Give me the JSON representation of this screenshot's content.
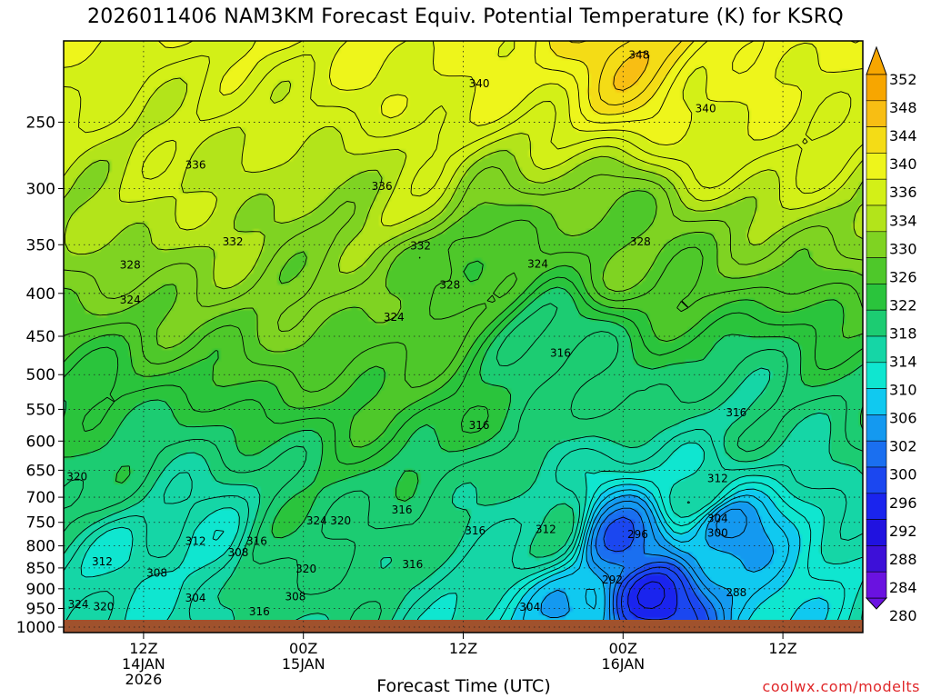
{
  "page_title": "2026011406 NAM3KM Forecast Equiv. Potential Temperature (K) for KSRQ",
  "credit": "coolwx.com/modelts",
  "chart_data": {
    "type": "heatmap",
    "title": "2026011406 NAM3KM Forecast Equiv. Potential Temperature (K) for KSRQ",
    "xlabel": "Forecast Time (UTC)",
    "ylabel": "",
    "y_scale": "log-pressure",
    "y_ticks": [
      250,
      300,
      350,
      400,
      450,
      500,
      550,
      600,
      650,
      700,
      750,
      800,
      850,
      900,
      950,
      1000
    ],
    "x_ticks": [
      {
        "hour": 6,
        "lines": [
          "12Z",
          "14JAN",
          "2026"
        ]
      },
      {
        "hour": 18,
        "lines": [
          "00Z",
          "15JAN"
        ]
      },
      {
        "hour": 30,
        "lines": [
          "12Z"
        ]
      },
      {
        "hour": 42,
        "lines": [
          "00Z",
          "16JAN"
        ]
      },
      {
        "hour": 54,
        "lines": [
          "12Z"
        ]
      }
    ],
    "x_range_hours": [
      0,
      60
    ],
    "y_range_hpa": [
      200,
      1015
    ],
    "grid": true,
    "colorbar_levels": [
      352,
      348,
      344,
      340,
      336,
      334,
      330,
      326,
      322,
      318,
      314,
      310,
      306,
      302,
      300,
      296,
      292,
      288,
      284,
      280
    ],
    "colorbar_colors": [
      "#f7a600",
      "#f8be13",
      "#f4dc16",
      "#eef51b",
      "#d3f017",
      "#b3e41a",
      "#7fd322",
      "#4ec82a",
      "#2ac43c",
      "#1ccc72",
      "#15d6a6",
      "#0fe6d0",
      "#10c9f0",
      "#1499f0",
      "#1a6ff0",
      "#1b47f0",
      "#1a24ee",
      "#2012e0",
      "#3d10d8",
      "#6a12e0"
    ],
    "anchor_points": [
      {
        "hour": 5,
        "hpa": 840,
        "theta_e": 312
      },
      {
        "hour": 2,
        "hpa": 660,
        "theta_e": 320
      },
      {
        "hour": 10,
        "hpa": 770,
        "theta_e": 312
      },
      {
        "hour": 17,
        "hpa": 835,
        "theta_e": 320
      },
      {
        "hour": 36,
        "hpa": 760,
        "theta_e": 316
      },
      {
        "hour": 42,
        "hpa": 790,
        "theta_e": 296
      },
      {
        "hour": 44,
        "hpa": 925,
        "theta_e": 288
      },
      {
        "hour": 38,
        "hpa": 955,
        "theta_e": 304
      },
      {
        "hour": 48,
        "hpa": 680,
        "theta_e": 312
      },
      {
        "hour": 50,
        "hpa": 760,
        "theta_e": 300
      },
      {
        "hour": 51,
        "hpa": 560,
        "theta_e": 316
      },
      {
        "hour": 37,
        "hpa": 460,
        "theta_e": 316
      },
      {
        "hour": 28,
        "hpa": 390,
        "theta_e": 328
      },
      {
        "hour": 42,
        "hpa": 350,
        "theta_e": 328
      },
      {
        "hour": 31,
        "hpa": 365,
        "theta_e": 324
      },
      {
        "hour": 20,
        "hpa": 350,
        "theta_e": 332
      },
      {
        "hour": 26,
        "hpa": 310,
        "theta_e": 336
      },
      {
        "hour": 28,
        "hpa": 225,
        "theta_e": 340
      },
      {
        "hour": 50,
        "hpa": 240,
        "theta_e": 340
      },
      {
        "hour": 43,
        "hpa": 208,
        "theta_e": 348
      },
      {
        "hour": 10,
        "hpa": 285,
        "theta_e": 336
      }
    ],
    "contour_labels": [
      {
        "text": "348",
        "hour": 43.2,
        "hpa": 208
      },
      {
        "text": "340",
        "hour": 31.2,
        "hpa": 225
      },
      {
        "text": "340",
        "hour": 48.2,
        "hpa": 241
      },
      {
        "text": "336",
        "hour": 9.9,
        "hpa": 281
      },
      {
        "text": "336",
        "hour": 23.9,
        "hpa": 298
      },
      {
        "text": "332",
        "hour": 12.7,
        "hpa": 347
      },
      {
        "text": "332",
        "hour": 26.8,
        "hpa": 351
      },
      {
        "text": "328",
        "hour": 5.0,
        "hpa": 370
      },
      {
        "text": "324",
        "hour": 5.0,
        "hpa": 407
      },
      {
        "text": "328",
        "hour": 29.0,
        "hpa": 391
      },
      {
        "text": "324",
        "hour": 35.6,
        "hpa": 369
      },
      {
        "text": "328",
        "hour": 43.3,
        "hpa": 347
      },
      {
        "text": "324",
        "hour": 24.8,
        "hpa": 427
      },
      {
        "text": "316",
        "hour": 37.3,
        "hpa": 471
      },
      {
        "text": "316",
        "hour": 50.5,
        "hpa": 555
      },
      {
        "text": "316",
        "hour": 31.2,
        "hpa": 575
      },
      {
        "text": "312",
        "hour": 49.1,
        "hpa": 665
      },
      {
        "text": "320",
        "hour": 1.0,
        "hpa": 662
      },
      {
        "text": "304",
        "hour": 49.1,
        "hpa": 742
      },
      {
        "text": "300",
        "hour": 49.1,
        "hpa": 772
      },
      {
        "text": "296",
        "hour": 43.1,
        "hpa": 775
      },
      {
        "text": "316",
        "hour": 25.4,
        "hpa": 725
      },
      {
        "text": "324",
        "hour": 19.0,
        "hpa": 747
      },
      {
        "text": "320",
        "hour": 20.8,
        "hpa": 747
      },
      {
        "text": "312",
        "hour": 36.2,
        "hpa": 765
      },
      {
        "text": "316",
        "hour": 30.9,
        "hpa": 768
      },
      {
        "text": "312",
        "hour": 9.9,
        "hpa": 790
      },
      {
        "text": "316",
        "hour": 14.5,
        "hpa": 790
      },
      {
        "text": "308",
        "hour": 13.1,
        "hpa": 815
      },
      {
        "text": "312",
        "hour": 2.9,
        "hpa": 835
      },
      {
        "text": "308",
        "hour": 7.0,
        "hpa": 862
      },
      {
        "text": "320",
        "hour": 18.2,
        "hpa": 852
      },
      {
        "text": "316",
        "hour": 26.2,
        "hpa": 842
      },
      {
        "text": "292",
        "hour": 41.2,
        "hpa": 878
      },
      {
        "text": "288",
        "hour": 50.5,
        "hpa": 910
      },
      {
        "text": "308",
        "hour": 17.4,
        "hpa": 920
      },
      {
        "text": "304",
        "hour": 9.9,
        "hpa": 923
      },
      {
        "text": "304",
        "hour": 35.0,
        "hpa": 946
      },
      {
        "text": "316",
        "hour": 14.7,
        "hpa": 958
      },
      {
        "text": "324",
        "hour": 1.1,
        "hpa": 940
      },
      {
        "text": "320",
        "hour": 3.0,
        "hpa": 945
      }
    ]
  }
}
